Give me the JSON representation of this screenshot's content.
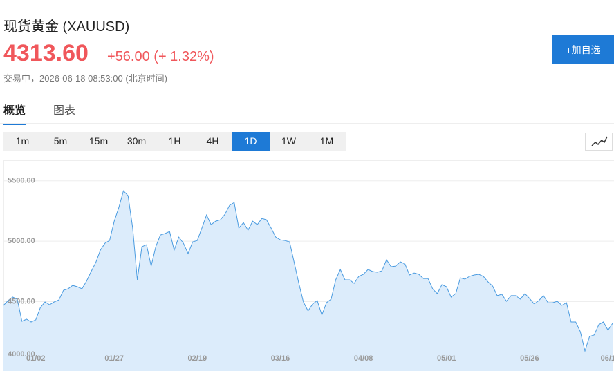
{
  "header": {
    "title": "现货黄金  (XAUUSD)",
    "price": "4313.60",
    "change": "+56.00 (+ 1.32%)",
    "status": "交易中，2026-06-18 08:53:00 (北京时间)"
  },
  "button": "+加自选",
  "tabs": [
    "概览",
    "图表"
  ],
  "timeframes": [
    "1m",
    "5m",
    "15m",
    "30m",
    "1H",
    "4H",
    "1D",
    "1W",
    "1M"
  ],
  "active_timeframe_index": 6,
  "chart_data": {
    "type": "area",
    "categories": [
      null,
      null,
      null,
      null,
      null,
      null,
      null,
      "01/02",
      null,
      null,
      null,
      null,
      null,
      null,
      null,
      null,
      null,
      null,
      null,
      null,
      null,
      null,
      null,
      null,
      "01/27",
      null,
      null,
      null,
      null,
      null,
      null,
      null,
      null,
      null,
      null,
      null,
      null,
      null,
      null,
      null,
      null,
      null,
      "02/19",
      null,
      null,
      null,
      null,
      null,
      null,
      null,
      null,
      null,
      null,
      null,
      null,
      null,
      null,
      null,
      null,
      null,
      "03/16",
      null,
      null,
      null,
      null,
      null,
      null,
      null,
      null,
      null,
      null,
      null,
      null,
      null,
      null,
      null,
      null,
      null,
      "04/08",
      null,
      null,
      null,
      null,
      null,
      null,
      null,
      null,
      null,
      null,
      null,
      null,
      null,
      null,
      null,
      null,
      null,
      "05/01",
      null,
      null,
      null,
      null,
      null,
      null,
      null,
      null,
      null,
      null,
      null,
      null,
      null,
      null,
      null,
      null,
      null,
      "05/26",
      null,
      null,
      null,
      null,
      null,
      null,
      null,
      null,
      null,
      null,
      null,
      null,
      null,
      null,
      null,
      null,
      "06/1",
      null
    ],
    "values": [
      4468.5,
      4508.5,
      4537,
      4520,
      4337,
      4354,
      4331,
      4349,
      4451,
      4497,
      4474,
      4497,
      4514,
      4594,
      4606,
      4634,
      4623,
      4606,
      4669,
      4749,
      4823,
      4926,
      4983,
      5006,
      5166,
      5280,
      5417,
      5377,
      5109,
      4680,
      4954,
      4971,
      4794,
      4954,
      5051,
      5063,
      5080,
      4926,
      5034,
      4983,
      4897,
      4994,
      5006,
      5109,
      5217,
      5137,
      5166,
      5177,
      5223,
      5297,
      5320,
      5109,
      5154,
      5091,
      5166,
      5137,
      5189,
      5177,
      5109,
      5034,
      5011,
      5006,
      4994,
      4823,
      4651,
      4497,
      4423,
      4480,
      4508,
      4389,
      4491,
      4520,
      4680,
      4766,
      4680,
      4680,
      4651,
      4709,
      4726,
      4766,
      4749,
      4743,
      4754,
      4846,
      4789,
      4794,
      4829,
      4811,
      4720,
      4737,
      4726,
      4691,
      4691,
      4606,
      4566,
      4640,
      4623,
      4537,
      4566,
      4697,
      4686,
      4709,
      4720,
      4726,
      4709,
      4663,
      4629,
      4549,
      4560,
      4503,
      4549,
      4549,
      4520,
      4566,
      4526,
      4480,
      4508,
      4549,
      4491,
      4491,
      4503,
      4469,
      4491,
      4331,
      4331,
      4251,
      4091,
      4211,
      4223,
      4309,
      4331,
      4263,
      4320
    ],
    "color": "#4a9be0",
    "fill": "#dcecfb",
    "ylim": [
      3925,
      5670
    ],
    "yticks": [
      {
        "value": 4000,
        "label": "4000.00"
      },
      {
        "value": 4500,
        "label": "4500.00"
      },
      {
        "value": 5000,
        "label": "5000.00"
      },
      {
        "value": 5500,
        "label": "5500.00"
      }
    ],
    "grid": true
  }
}
